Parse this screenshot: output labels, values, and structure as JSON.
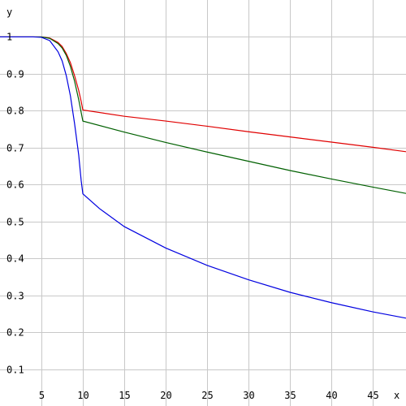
{
  "chart_data": {
    "type": "line",
    "title": "",
    "xlabel": "x",
    "ylabel": "y",
    "xlim": [
      0,
      49
    ],
    "ylim": [
      0,
      1.1
    ],
    "x_ticks": [
      5,
      10,
      15,
      20,
      25,
      30,
      35,
      40,
      45
    ],
    "x_tick_labels": [
      "5",
      "10",
      "15",
      "20",
      "25",
      "30",
      "35",
      "40",
      "45"
    ],
    "y_ticks": [
      0.1,
      0.2,
      0.3,
      0.4,
      0.5,
      0.6,
      0.7,
      0.8,
      0.9,
      1
    ],
    "y_tick_labels": [
      "0.1",
      "0.2",
      "0.3",
      "0.4",
      "0.5",
      "0.6",
      "0.7",
      "0.8",
      "0.9",
      "1"
    ],
    "grid": true,
    "legend": "none",
    "series": [
      {
        "color": "#e00000",
        "x": [
          0,
          4,
          5,
          6,
          7,
          7.5,
          8,
          8.5,
          9,
          9.5,
          9.8,
          10,
          15,
          20,
          25,
          30,
          35,
          40,
          45,
          49
        ],
        "values": [
          1,
          1,
          1,
          0.997,
          0.985,
          0.974,
          0.955,
          0.93,
          0.895,
          0.855,
          0.825,
          0.802,
          0.785,
          0.772,
          0.758,
          0.743,
          0.729,
          0.715,
          0.701,
          0.689
        ]
      },
      {
        "color": "#006000",
        "x": [
          0,
          4,
          5,
          6,
          7,
          7.5,
          8,
          8.5,
          9,
          9.5,
          9.8,
          10,
          15,
          20,
          25,
          30,
          35,
          40,
          45,
          49
        ],
        "values": [
          1,
          1,
          1,
          0.996,
          0.982,
          0.97,
          0.95,
          0.92,
          0.88,
          0.83,
          0.795,
          0.772,
          0.742,
          0.714,
          0.688,
          0.663,
          0.638,
          0.615,
          0.593,
          0.576
        ]
      },
      {
        "color": "#0000e0",
        "x": [
          0,
          4,
          5,
          6,
          7,
          7.5,
          8,
          8.5,
          9,
          9.5,
          9.8,
          10,
          12,
          15,
          20,
          25,
          30,
          35,
          40,
          45,
          49
        ],
        "values": [
          1,
          1,
          0.999,
          0.99,
          0.96,
          0.935,
          0.895,
          0.84,
          0.765,
          0.68,
          0.61,
          0.575,
          0.535,
          0.486,
          0.428,
          0.381,
          0.342,
          0.308,
          0.28,
          0.255,
          0.238
        ]
      }
    ]
  }
}
